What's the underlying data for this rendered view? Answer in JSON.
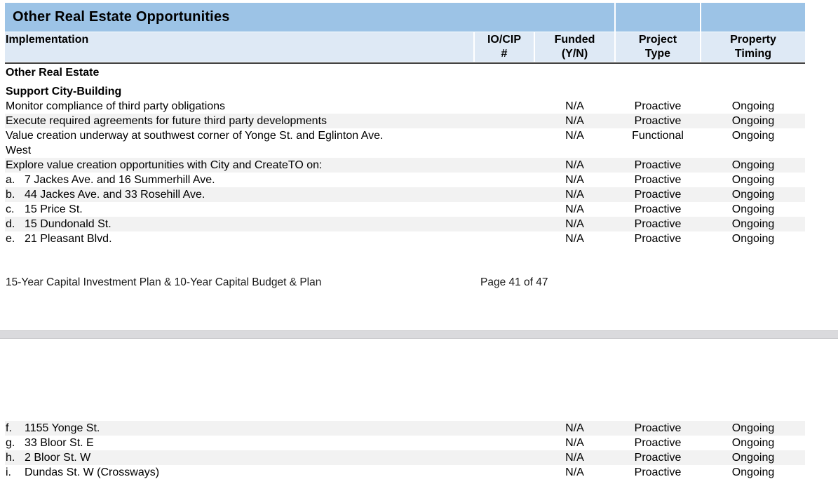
{
  "colors": {
    "title_bar_bg": "#9CC3E6",
    "header_bg": "#DEE9F5",
    "row_shade": "#F2F2F2",
    "header_border": "#3E3E3E",
    "separator_bg": "#DADADD"
  },
  "table": {
    "title": "Other Real Estate Opportunities",
    "columns": {
      "implementation": "Implementation",
      "io_cip": {
        "line1": "IO/CIP",
        "line2": "#"
      },
      "funded": {
        "line1": "Funded",
        "line2": "(Y/N)"
      },
      "project_type": {
        "line1": "Project",
        "line2": "Type"
      },
      "property_timing": {
        "line1": "Property",
        "line2": "Timing"
      }
    }
  },
  "page41": {
    "rows": [
      {
        "kind": "section",
        "label": "Other Real Estate"
      },
      {
        "kind": "spacer"
      },
      {
        "kind": "section",
        "label": "Support City-Building"
      },
      {
        "kind": "item",
        "label": "Monitor compliance of third party obligations",
        "io_cip": "",
        "funded": "N/A",
        "project_type": "Proactive",
        "property_timing": "Ongoing",
        "shaded": false
      },
      {
        "kind": "item",
        "label": "Execute required agreements for future third party developments",
        "io_cip": "",
        "funded": "N/A",
        "project_type": "Proactive",
        "property_timing": "Ongoing",
        "shaded": true
      },
      {
        "kind": "item",
        "label": "Value creation underway at southwest corner of Yonge St. and Eglinton Ave.",
        "label_line2": "West",
        "io_cip": "",
        "funded": "N/A",
        "project_type": "Functional",
        "property_timing": "Ongoing",
        "shaded": false
      },
      {
        "kind": "item",
        "label": "Explore value creation opportunities with City and CreateTO on:",
        "io_cip": "",
        "funded": "N/A",
        "project_type": "Proactive",
        "property_timing": "Ongoing",
        "shaded": true
      },
      {
        "kind": "item",
        "letter": "a.",
        "label": "7 Jackes Ave. and 16 Summerhill Ave.",
        "io_cip": "",
        "funded": "N/A",
        "project_type": "Proactive",
        "property_timing": "Ongoing",
        "shaded": false
      },
      {
        "kind": "item",
        "letter": "b.",
        "label": "44 Jackes Ave. and 33 Rosehill Ave.",
        "io_cip": "",
        "funded": "N/A",
        "project_type": "Proactive",
        "property_timing": "Ongoing",
        "shaded": true
      },
      {
        "kind": "item",
        "letter": "c.",
        "label": "15 Price St.",
        "io_cip": "",
        "funded": "N/A",
        "project_type": "Proactive",
        "property_timing": "Ongoing",
        "shaded": false
      },
      {
        "kind": "item",
        "letter": "d.",
        "label": "15 Dundonald St.",
        "io_cip": "",
        "funded": "N/A",
        "project_type": "Proactive",
        "property_timing": "Ongoing",
        "shaded": true
      },
      {
        "kind": "item",
        "letter": "e.",
        "label": "21 Pleasant Blvd.",
        "io_cip": "",
        "funded": "N/A",
        "project_type": "Proactive",
        "property_timing": "Ongoing",
        "shaded": false
      }
    ],
    "footer": {
      "plan_label": "15-Year Capital Investment Plan & 10-Year Capital Budget & Plan",
      "page_label": "Page 41 of 47"
    }
  },
  "page42": {
    "rows": [
      {
        "kind": "item",
        "letter": "f.",
        "label": "1155 Yonge St.",
        "io_cip": "",
        "funded": "N/A",
        "project_type": "Proactive",
        "property_timing": "Ongoing",
        "shaded": true
      },
      {
        "kind": "item",
        "letter": "g.",
        "label": "33 Bloor St. E",
        "io_cip": "",
        "funded": "N/A",
        "project_type": "Proactive",
        "property_timing": "Ongoing",
        "shaded": false
      },
      {
        "kind": "item",
        "letter": "h.",
        "label": "2 Bloor St. W",
        "io_cip": "",
        "funded": "N/A",
        "project_type": "Proactive",
        "property_timing": "Ongoing",
        "shaded": true
      },
      {
        "kind": "item",
        "letter": "i.",
        "label": "Dundas St. W (Crossways)",
        "io_cip": "",
        "funded": "N/A",
        "project_type": "Proactive",
        "property_timing": "Ongoing",
        "shaded": false
      }
    ]
  }
}
